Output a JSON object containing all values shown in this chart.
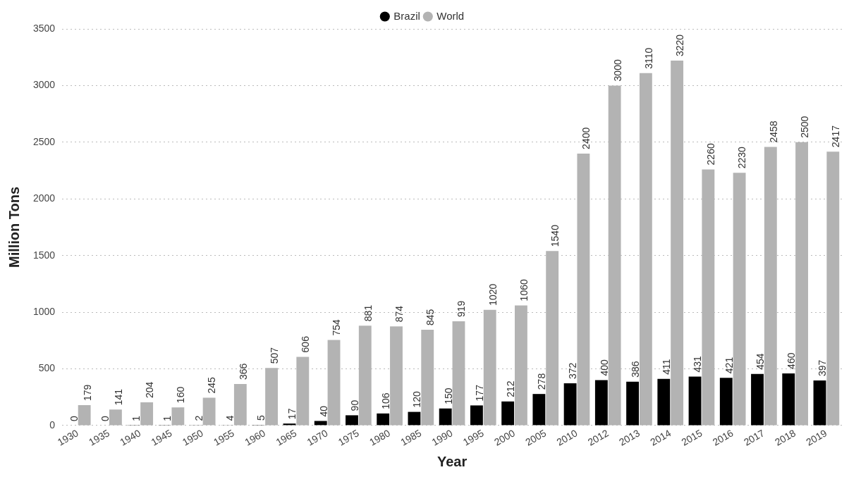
{
  "chart_data": {
    "type": "bar",
    "xlabel": "Year",
    "ylabel": "Million Tons",
    "categories": [
      "1930",
      "1935",
      "1940",
      "1945",
      "1950",
      "1955",
      "1960",
      "1965",
      "1970",
      "1975",
      "1980",
      "1985",
      "1990",
      "1995",
      "2000",
      "2005",
      "2010",
      "2012",
      "2013",
      "2014",
      "2015",
      "2016",
      "2017",
      "2018",
      "2019"
    ],
    "series": [
      {
        "name": "Brazil",
        "color": "#000000",
        "values": [
          0,
          0,
          1,
          1,
          2,
          4,
          5,
          17,
          40,
          90,
          106,
          120,
          150,
          177,
          212,
          278,
          372,
          400,
          386,
          411,
          431,
          421,
          454,
          460,
          397
        ]
      },
      {
        "name": "World",
        "color": "#b3b3b3",
        "values": [
          179,
          141,
          204,
          160,
          245,
          366,
          507,
          606,
          754,
          881,
          874,
          845,
          919,
          1020,
          1060,
          1540,
          2400,
          3000,
          3110,
          3220,
          2260,
          2230,
          2458,
          2500,
          2417
        ]
      }
    ],
    "ylim": [
      0,
      3500
    ],
    "yticks": [
      0,
      500,
      1000,
      1500,
      2000,
      2500,
      3000,
      3500
    ],
    "grid": "y",
    "legend": "top",
    "data_labels": true
  }
}
